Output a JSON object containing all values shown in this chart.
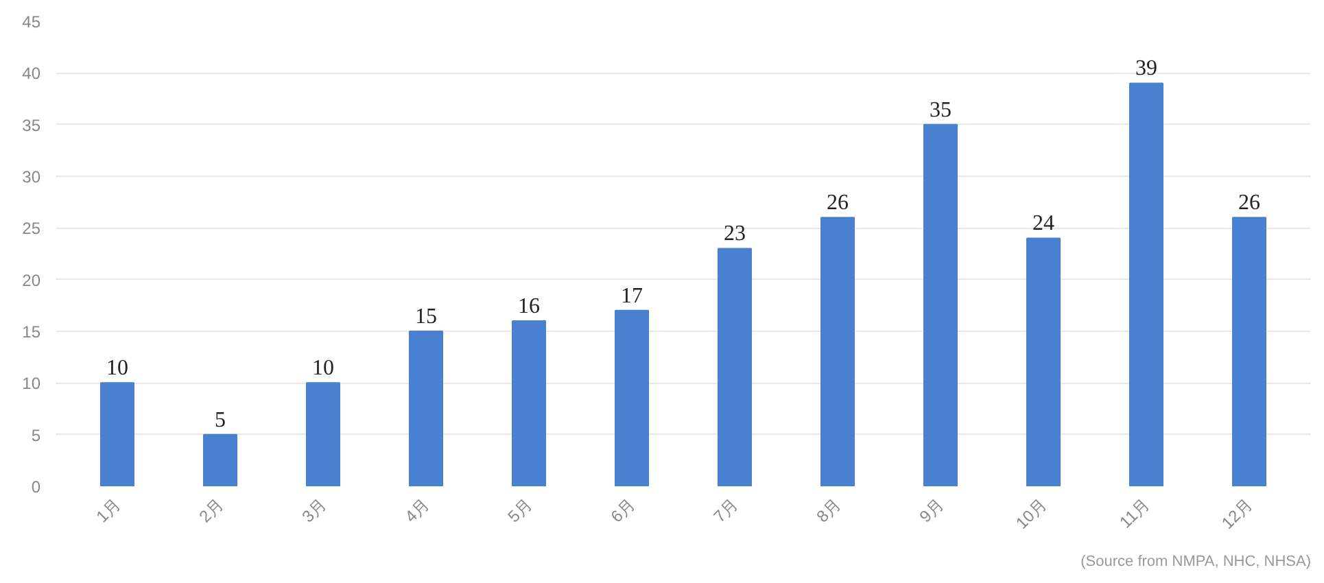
{
  "chart_data": {
    "type": "bar",
    "categories": [
      "1月",
      "2月",
      "3月",
      "4月",
      "5月",
      "6月",
      "7月",
      "8月",
      "9月",
      "10月",
      "11月",
      "12月"
    ],
    "values": [
      10,
      5,
      10,
      15,
      16,
      17,
      23,
      26,
      35,
      24,
      39,
      26
    ],
    "color": "#4a80d0",
    "ylim": [
      0,
      45
    ],
    "yticks": [
      0,
      5,
      10,
      15,
      20,
      25,
      30,
      35,
      40,
      45
    ],
    "grid": "y",
    "data_labels": true,
    "annotations": [
      "(Source from NMPA, NHC, NHSA)"
    ]
  }
}
